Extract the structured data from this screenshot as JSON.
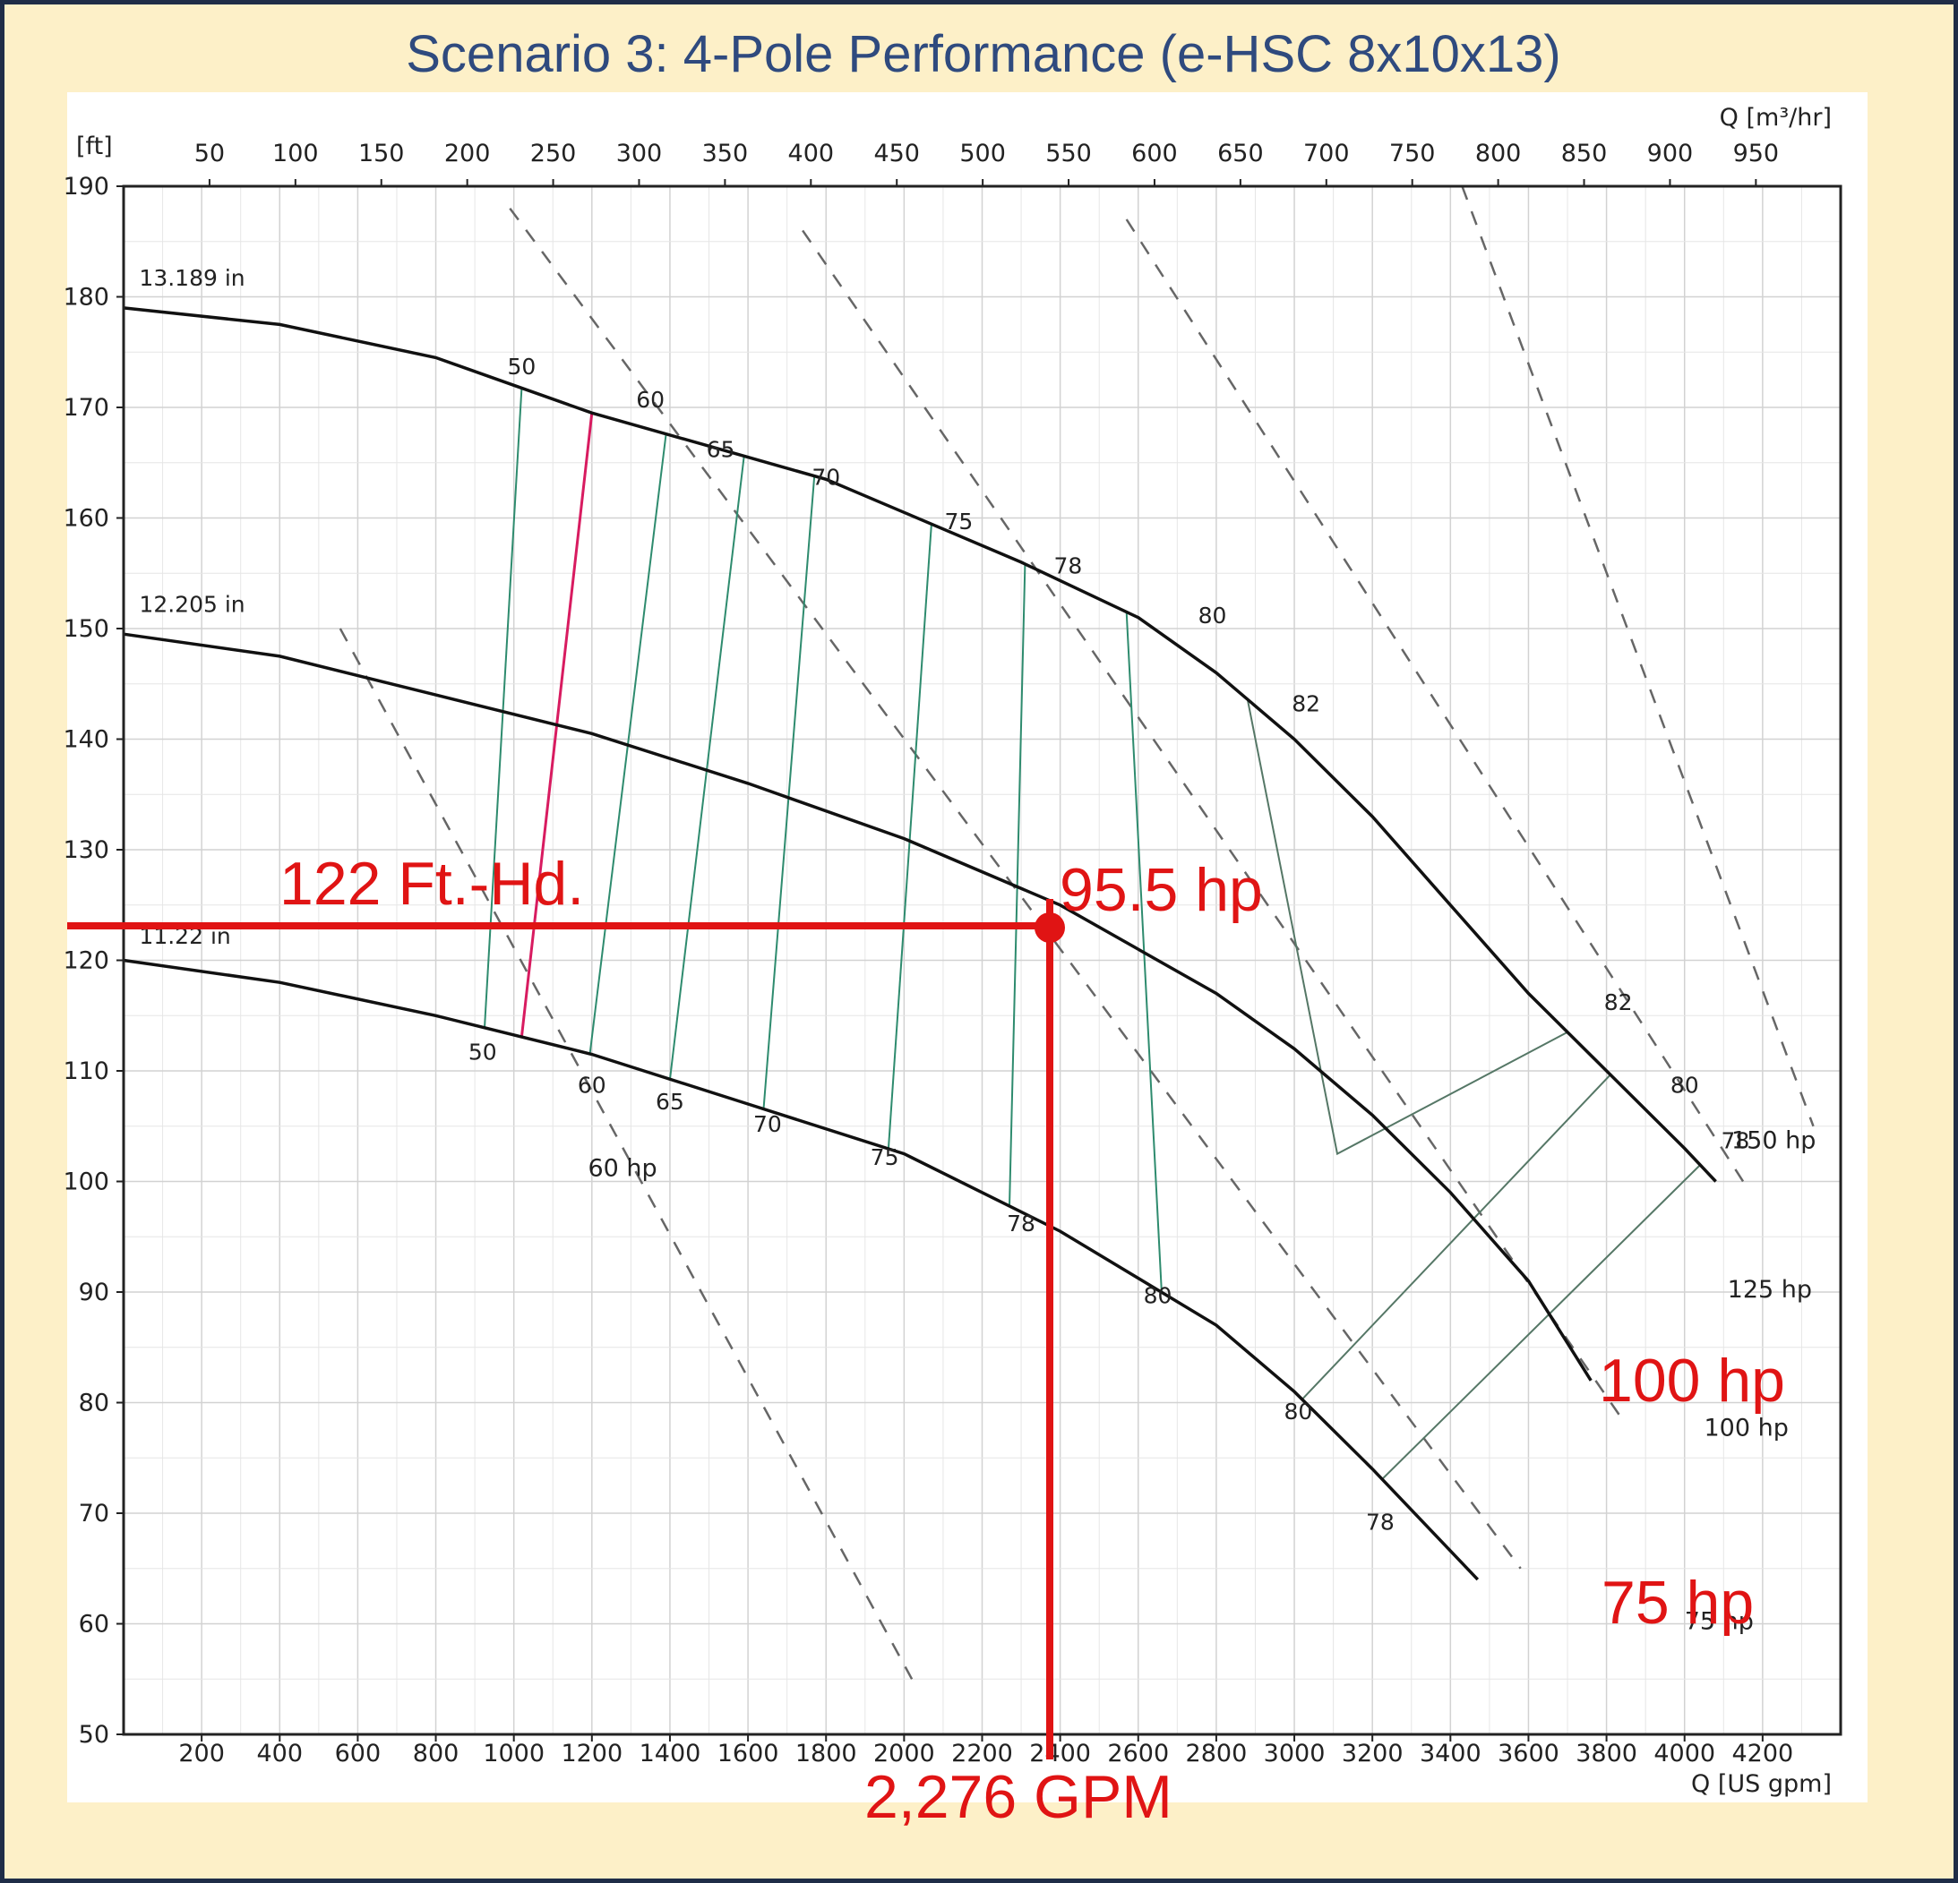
{
  "chart_data": {
    "type": "line",
    "title": "Scenario 3: 4-Pole Performance (e-HSC 8x10x13)",
    "ylabel": "[ft]",
    "x_top_label": "Q [m³/hr]",
    "x_bottom_label": "Q [US gpm]",
    "ylim": [
      50,
      190
    ],
    "xlim_gpm": [
      0,
      4400
    ],
    "y_ticks": [
      50,
      60,
      70,
      80,
      90,
      100,
      110,
      120,
      130,
      140,
      150,
      160,
      170,
      180,
      190
    ],
    "x_bottom_ticks": [
      200,
      400,
      600,
      800,
      1000,
      1200,
      1400,
      1600,
      1800,
      2000,
      2200,
      2400,
      2600,
      2800,
      3000,
      3200,
      3400,
      3600,
      3800,
      4000,
      4200
    ],
    "x_top_ticks": [
      50,
      100,
      150,
      200,
      250,
      300,
      350,
      400,
      450,
      500,
      550,
      600,
      650,
      700,
      750,
      800,
      850,
      900,
      950
    ],
    "grid": true,
    "series": [
      {
        "name": "13.189 in",
        "points": [
          [
            0,
            179
          ],
          [
            400,
            177.5
          ],
          [
            800,
            174.5
          ],
          [
            1000,
            172
          ],
          [
            1200,
            169.5
          ],
          [
            1500,
            166.5
          ],
          [
            1800,
            163.5
          ],
          [
            2000,
            160.5
          ],
          [
            2300,
            156
          ],
          [
            2600,
            151
          ],
          [
            2800,
            146
          ],
          [
            3000,
            140
          ],
          [
            3200,
            133
          ],
          [
            3400,
            125
          ],
          [
            3600,
            117
          ],
          [
            3800,
            110
          ],
          [
            4000,
            103
          ],
          [
            4080,
            100
          ]
        ]
      },
      {
        "name": "12.205 in",
        "points": [
          [
            0,
            149.5
          ],
          [
            400,
            147.5
          ],
          [
            800,
            144
          ],
          [
            1200,
            140.5
          ],
          [
            1600,
            136
          ],
          [
            2000,
            131
          ],
          [
            2400,
            125
          ],
          [
            2800,
            117
          ],
          [
            3000,
            112
          ],
          [
            3200,
            106
          ],
          [
            3400,
            99
          ],
          [
            3600,
            91
          ],
          [
            3760,
            82
          ]
        ]
      },
      {
        "name": "11.22 in",
        "points": [
          [
            0,
            120
          ],
          [
            400,
            118
          ],
          [
            800,
            115
          ],
          [
            1200,
            111.5
          ],
          [
            1600,
            107
          ],
          [
            2000,
            102.5
          ],
          [
            2400,
            95.5
          ],
          [
            2800,
            87
          ],
          [
            3000,
            81
          ],
          [
            3200,
            74
          ],
          [
            3470,
            64
          ]
        ]
      }
    ],
    "efficiency_labels": {
      "13.189 in": [
        "50",
        "60",
        "65",
        "70",
        "75",
        "78",
        "80",
        "82",
        "82",
        "80",
        "78"
      ],
      "11.22 in": [
        "50",
        "60",
        "65",
        "70",
        "75",
        "78",
        "80",
        "80",
        "78"
      ]
    },
    "power_lines": [
      "60 hp",
      "75 hp",
      "100 hp",
      "125 hp",
      "150 hp"
    ],
    "operating_point": {
      "gpm": 2276,
      "head_ft": 122,
      "power": "95.5 hp"
    },
    "annotations": {
      "head": "122 Ft.-Hd.",
      "power": "95.5 hp",
      "flow": "2,276 GPM",
      "hp100": "100 hp",
      "hp75": "75 hp"
    }
  },
  "colors": {
    "background": "#fdf0c8",
    "title": "#2f4a7e",
    "annotation": "#e01414",
    "efficiency_lines": "#2e8b6e",
    "selected_diameter_line": "#d81b60"
  }
}
